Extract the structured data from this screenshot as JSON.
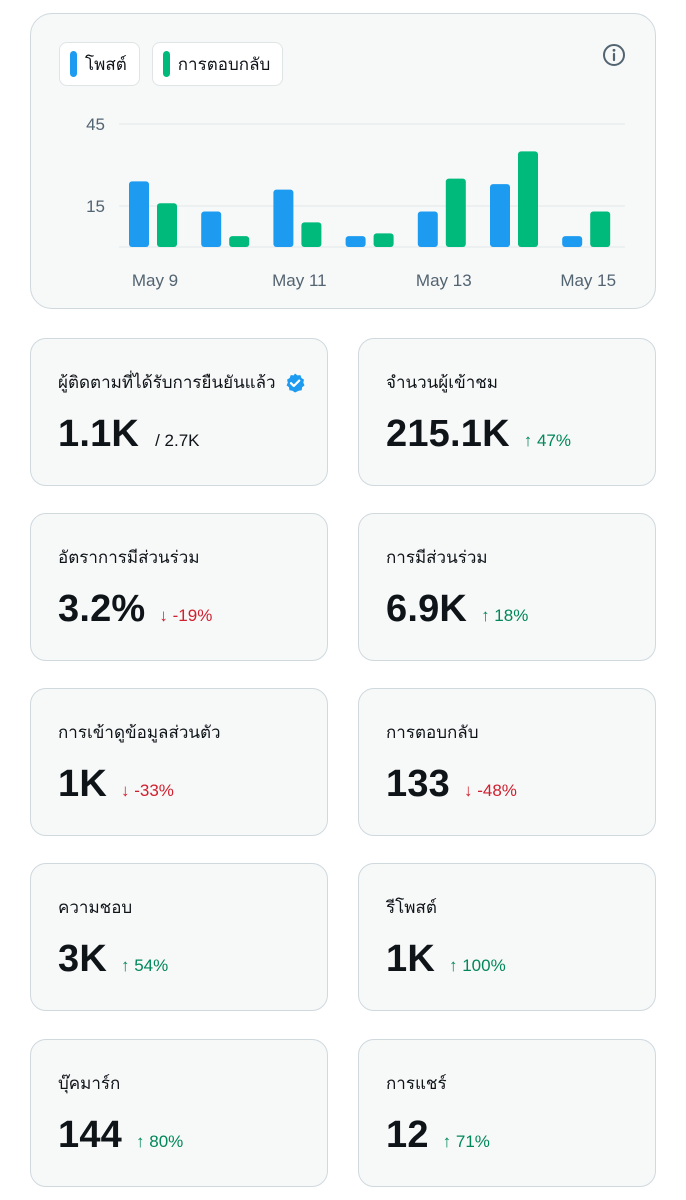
{
  "chart": {
    "legend": [
      {
        "label": "โพสต์",
        "color": "#1d9bf0"
      },
      {
        "label": "การตอบกลับ",
        "color": "#00ba7c"
      }
    ],
    "info_icon": "info-circle-icon"
  },
  "chart_data": {
    "type": "bar",
    "categories": [
      "May 9",
      "May 10",
      "May 11",
      "May 12",
      "May 13",
      "May 14",
      "May 15"
    ],
    "x_tick_labels": [
      "May 9",
      "May 11",
      "May 13",
      "May 15"
    ],
    "y_ticks": [
      15,
      45
    ],
    "ylim": [
      0,
      54
    ],
    "grid": true,
    "legend_placement": "top-left",
    "series": [
      {
        "name": "โพสต์",
        "color": "#1d9bf0",
        "values": [
          24,
          13,
          21,
          4,
          13,
          23,
          4
        ]
      },
      {
        "name": "การตอบกลับ",
        "color": "#00ba7c",
        "values": [
          16,
          4,
          9,
          5,
          25,
          35,
          13
        ]
      }
    ]
  },
  "stats": [
    {
      "title": "ผู้ติดตามที่ได้รับการยืนยันแล้ว",
      "value": "1.1K",
      "sub": "/ 2.7K",
      "verified": true
    },
    {
      "title": "จำนวนผู้เข้าชม",
      "value": "215.1K",
      "change": "↑ 47%",
      "direction": "up"
    },
    {
      "title": "อัตราการมีส่วนร่วม",
      "value": "3.2%",
      "change": "↓ -19%",
      "direction": "down"
    },
    {
      "title": "การมีส่วนร่วม",
      "value": "6.9K",
      "change": "↑ 18%",
      "direction": "up"
    },
    {
      "title": "การเข้าดูข้อมูลส่วนตัว",
      "value": "1K",
      "change": "↓ -33%",
      "direction": "down"
    },
    {
      "title": "การตอบกลับ",
      "value": "133",
      "change": "↓ -48%",
      "direction": "down"
    },
    {
      "title": "ความชอบ",
      "value": "3K",
      "change": "↑ 54%",
      "direction": "up"
    },
    {
      "title": "รีโพสต์",
      "value": "1K",
      "change": "↑ 100%",
      "direction": "up"
    },
    {
      "title": "บุ๊คมาร์ก",
      "value": "144",
      "change": "↑ 80%",
      "direction": "up"
    },
    {
      "title": "การแชร์",
      "value": "12",
      "change": "↑ 71%",
      "direction": "up"
    }
  ],
  "colors": {
    "up": "#00875a",
    "down": "#d0202f",
    "verified": "#1d9bf0"
  }
}
